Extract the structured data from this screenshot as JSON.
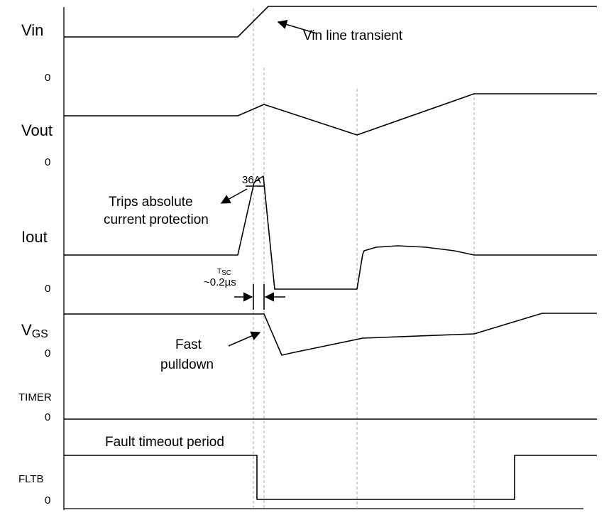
{
  "signals": [
    {
      "id": "vin",
      "label": "Vin",
      "zero": "0"
    },
    {
      "id": "vout",
      "label": "Vout",
      "zero": "0"
    },
    {
      "id": "iout",
      "label": "Iout",
      "zero": "0"
    },
    {
      "id": "vgs",
      "label_main": "V",
      "label_sub": "GS",
      "zero": "0"
    },
    {
      "id": "timer",
      "label": "TIMER",
      "zero": "0"
    },
    {
      "id": "fltb",
      "label": "FLTB",
      "zero": "0"
    }
  ],
  "annotations": {
    "vin_transient": "Vin line transient",
    "current_value": "36A",
    "trip_line1": "Trips absolute",
    "trip_line2": "current protection",
    "tsc_main": "T",
    "tsc_sub": "SC",
    "tsc_value": "~0.2µs",
    "fast_line1": "Fast",
    "fast_line2": "pulldown",
    "fault_timeout": "Fault timeout period"
  }
}
